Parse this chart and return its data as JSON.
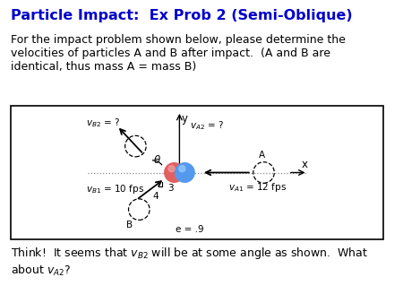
{
  "title": "Particle Impact:  Ex Prob 2 (Semi-Oblique)",
  "title_color": "#0000cc",
  "body_text": "For the impact problem shown below, please determine the\nvelocities of particles A and B after impact.  (A and B are\nidentical, thus mass A = mass B)",
  "bottom_text": "Think!  It seems that $v_{B2}$ will be at some angle as shown.  What\nabout $v_{A2}$?",
  "background_color": "#ffffff",
  "body_fontsize": 9.0,
  "title_fontsize": 11.5,
  "diagram_fontsize": 7.5
}
